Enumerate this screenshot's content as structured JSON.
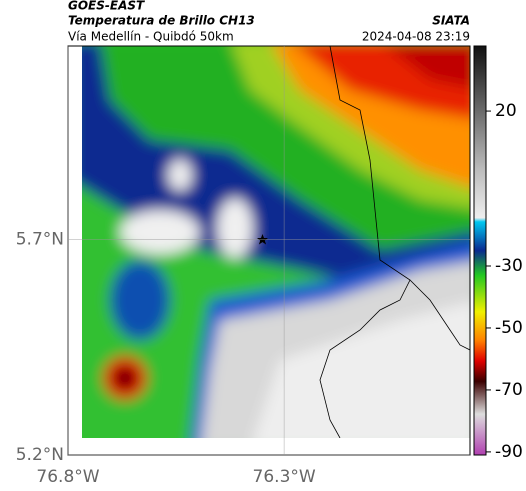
{
  "header": {
    "title": "GOES-EAST",
    "subtitle": "Temperatura de Brillo CH13",
    "region": "Vía Medellín - Quibdó 50km",
    "source": "SIATA",
    "timestamp": "2024-04-08 23:19"
  },
  "map": {
    "xlim": [
      -76.8,
      -75.87
    ],
    "ylim": [
      5.2,
      6.15
    ],
    "xticks": [
      {
        "value": -76.8,
        "label": "76.8°W"
      },
      {
        "value": -76.3,
        "label": "76.3°W"
      }
    ],
    "yticks": [
      {
        "value": 5.7,
        "label": "5.7°N"
      },
      {
        "value": 5.2,
        "label": "5.2°N"
      }
    ]
  },
  "colorbar": {
    "lim": [
      41,
      -91
    ],
    "ticks": [
      20,
      -30,
      -50,
      -70,
      -90
    ]
  }
}
